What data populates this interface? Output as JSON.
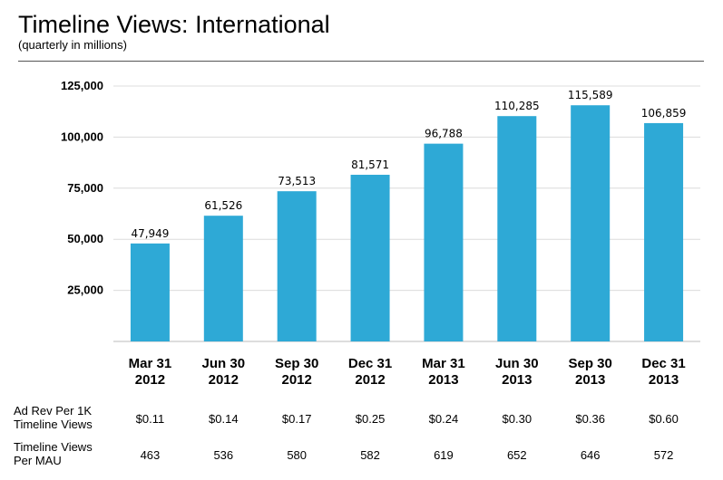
{
  "title": "Timeline Views: International",
  "subtitle": "(quarterly in millions)",
  "colors": {
    "bar": "#2ea9d6",
    "grid": "#dcdcdc",
    "rule": "#555555"
  },
  "chart_data": {
    "type": "bar",
    "title": "Timeline Views: International",
    "subtitle": "(quarterly in millions)",
    "xlabel": "",
    "ylabel": "",
    "categories": [
      [
        "Mar 31",
        "2012"
      ],
      [
        "Jun 30",
        "2012"
      ],
      [
        "Sep 30",
        "2012"
      ],
      [
        "Dec 31",
        "2012"
      ],
      [
        "Mar 31",
        "2013"
      ],
      [
        "Jun 30",
        "2013"
      ],
      [
        "Sep 30",
        "2013"
      ],
      [
        "Dec 31",
        "2013"
      ]
    ],
    "values": [
      47949,
      61526,
      73513,
      81571,
      96788,
      110285,
      115589,
      106859
    ],
    "value_labels": [
      "47,949",
      "61,526",
      "73,513",
      "81,571",
      "96,788",
      "110,285",
      "115,589",
      "106,859"
    ],
    "ylim": [
      0,
      125000
    ],
    "yticks": [
      25000,
      50000,
      75000,
      100000,
      125000
    ],
    "ytick_labels": [
      "25,000",
      "50,000",
      "75,000",
      "100,000",
      "125,000"
    ],
    "grid": true,
    "legend": "none"
  },
  "table": {
    "rows": [
      {
        "header": [
          "Ad Rev Per 1K",
          "Timeline Views"
        ],
        "values": [
          "$0.11",
          "$0.14",
          "$0.17",
          "$0.25",
          "$0.24",
          "$0.30",
          "$0.36",
          "$0.60"
        ]
      },
      {
        "header": [
          "Timeline Views",
          "Per MAU"
        ],
        "values": [
          "463",
          "536",
          "580",
          "582",
          "619",
          "652",
          "646",
          "572"
        ]
      }
    ]
  }
}
